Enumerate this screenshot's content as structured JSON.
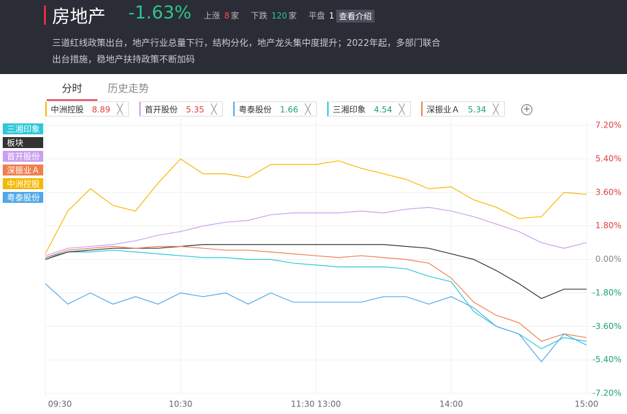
{
  "header": {
    "title": "房地产",
    "change": "-1.63%",
    "up_label": "上涨",
    "up_count": "8",
    "up_unit": "家",
    "down_label": "下跌",
    "down_count": "120",
    "down_unit": "家",
    "flat_label": "平盘",
    "flat_count": "1",
    "flat_unit": "家",
    "button": "查看介绍",
    "description": [
      "三道红线政策出台，地产行业总量下行，结构分化，地产龙头集中度提升；2022年起，多部门联合",
      "出台措施，稳地产扶持政策不断加码"
    ]
  },
  "tabs": [
    "分时",
    "历史走势"
  ],
  "watchlist": [
    {
      "name": "中洲控股",
      "price": "8.89",
      "color": "#f5b800",
      "price_color": "#e04040"
    },
    {
      "name": "首开股份",
      "price": "5.35",
      "color": "#c9a0f0",
      "price_color": "#e04040"
    },
    {
      "name": "粤泰股份",
      "price": "1.66",
      "color": "#50a8e8",
      "price_color": "#1fa36a"
    },
    {
      "name": "三湘印象",
      "price": "4.54",
      "color": "#30c8d8",
      "price_color": "#1fa36a"
    },
    {
      "name": "深振业Ａ",
      "price": "5.34",
      "color": "#f07f50",
      "price_color": "#1fa36a"
    }
  ],
  "chart_data": {
    "type": "line",
    "x": [
      0,
      10,
      20,
      30,
      40,
      50,
      60,
      70,
      80,
      90,
      100,
      110,
      120,
      130,
      140,
      150,
      160,
      170,
      180,
      190,
      200,
      210,
      220,
      230,
      240
    ],
    "xlim": [
      0,
      240
    ],
    "xticks": [
      {
        "value": 0,
        "label": "09:30"
      },
      {
        "value": 60,
        "label": "10:30"
      },
      {
        "value": 120,
        "label": "11:30 13:00"
      },
      {
        "value": 180,
        "label": "14:00"
      },
      {
        "value": 240,
        "label": "15:00"
      }
    ],
    "ylim": [
      -7.2,
      7.2
    ],
    "yticks": [
      {
        "value": 7.2,
        "label": "7.20%"
      },
      {
        "value": 5.4,
        "label": "5.40%"
      },
      {
        "value": 3.6,
        "label": "3.60%"
      },
      {
        "value": 1.8,
        "label": "1.80%"
      },
      {
        "value": 0,
        "label": "0.00%"
      },
      {
        "value": -1.8,
        "label": "-1.80%"
      },
      {
        "value": -3.6,
        "label": "-3.60%"
      },
      {
        "value": -5.4,
        "label": "-5.40%"
      },
      {
        "value": -7.2,
        "label": "-7.20%"
      }
    ],
    "grid": true,
    "series": [
      {
        "name": "三湘印象",
        "color": "#30c8d8",
        "values": [
          0.1,
          0.4,
          0.4,
          0.5,
          0.4,
          0.3,
          0.2,
          0.1,
          0.1,
          0.0,
          0.0,
          -0.2,
          -0.3,
          -0.4,
          -0.4,
          -0.4,
          -0.5,
          -0.9,
          -1.2,
          -2.8,
          -3.6,
          -4.0,
          -4.8,
          -4.2,
          -4.4
        ]
      },
      {
        "name": "板块",
        "color": "#333333",
        "values": [
          0,
          0.4,
          0.5,
          0.6,
          0.6,
          0.6,
          0.7,
          0.8,
          0.8,
          0.8,
          0.8,
          0.8,
          0.8,
          0.8,
          0.8,
          0.8,
          0.7,
          0.6,
          0.3,
          0,
          -0.6,
          -1.3,
          -2.1,
          -1.6,
          -1.6
        ]
      },
      {
        "name": "首开股份",
        "color": "#c9a0f0",
        "values": [
          0.2,
          0.6,
          0.7,
          0.8,
          1.0,
          1.3,
          1.5,
          1.8,
          2.0,
          2.1,
          2.4,
          2.5,
          2.5,
          2.5,
          2.6,
          2.5,
          2.7,
          2.8,
          2.6,
          2.3,
          1.9,
          1.5,
          0.9,
          0.6,
          0.9
        ]
      },
      {
        "name": "深振业Ａ",
        "color": "#f07f50",
        "values": [
          0.1,
          0.5,
          0.6,
          0.7,
          0.6,
          0.7,
          0.7,
          0.6,
          0.5,
          0.5,
          0.4,
          0.3,
          0.2,
          0.1,
          0.2,
          0.1,
          0.0,
          -0.2,
          -1.0,
          -2.3,
          -3.0,
          -3.4,
          -4.4,
          -4.0,
          -4.2
        ]
      },
      {
        "name": "中洲控股",
        "color": "#f5b800",
        "values": [
          0.3,
          2.6,
          3.8,
          2.9,
          2.6,
          4.1,
          5.4,
          4.6,
          4.6,
          4.4,
          5.1,
          5.1,
          5.1,
          5.3,
          4.9,
          4.6,
          4.3,
          3.8,
          3.9,
          3.2,
          2.8,
          2.2,
          2.3,
          3.6,
          3.5
        ]
      },
      {
        "name": "粤泰股份",
        "color": "#50a8e8",
        "values": [
          -1.3,
          -2.4,
          -1.8,
          -2.4,
          -2.0,
          -2.4,
          -1.8,
          -2.0,
          -1.8,
          -2.4,
          -1.8,
          -2.3,
          -2.3,
          -2.3,
          -2.3,
          -2.0,
          -2.0,
          -2.4,
          -2.0,
          -2.6,
          -3.6,
          -4.0,
          -5.5,
          -4.0,
          -4.6
        ]
      }
    ]
  }
}
